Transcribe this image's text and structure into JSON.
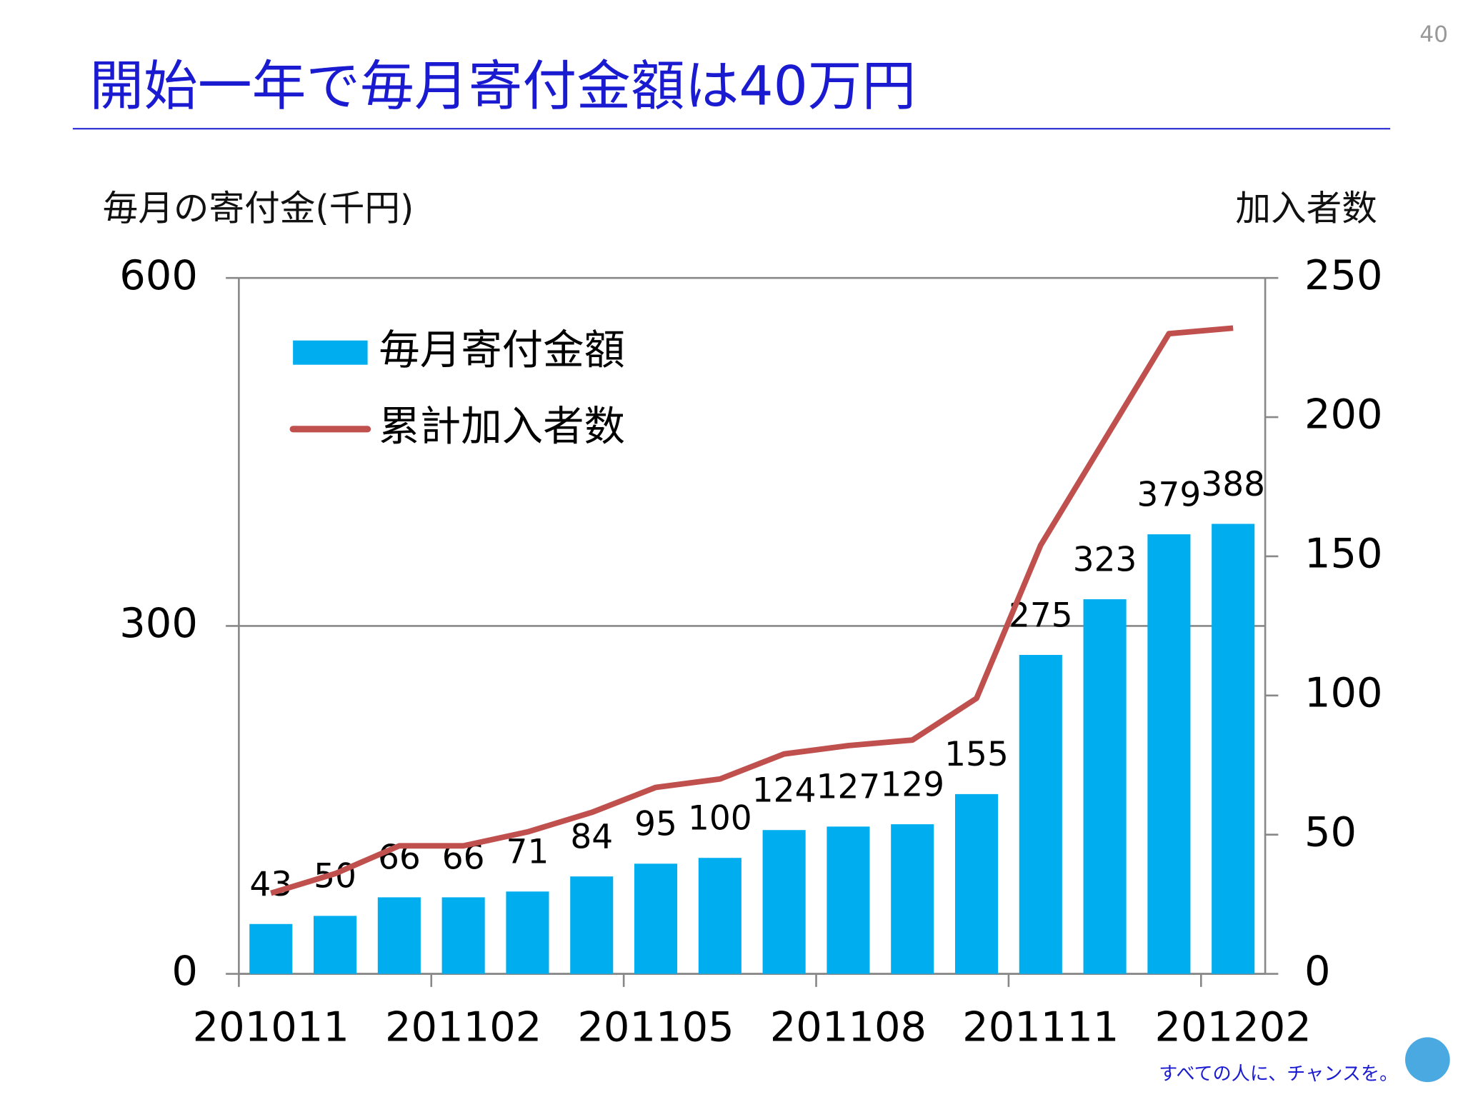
{
  "page_number": "40",
  "footer": "すべての人に、チャンスを。",
  "chart_data": {
    "type": "bar_line",
    "title": "開始一年で毎月寄付金額は40万円",
    "y_label": "毎月の寄付金(千円)",
    "y2_label": "加入者数",
    "categories": [
      "201011",
      null,
      null,
      "201102",
      null,
      null,
      "201105",
      null,
      null,
      "201108",
      null,
      null,
      "201111",
      null,
      null,
      "201202"
    ],
    "series": [
      {
        "name": "毎月寄付金額",
        "type": "bar",
        "color": "#00aeef",
        "values": [
          43,
          50,
          66,
          66,
          71,
          84,
          95,
          100,
          124,
          127,
          129,
          155,
          275,
          323,
          379,
          388
        ]
      },
      {
        "name": "累計加入者数",
        "type": "line",
        "color": "#c0504d",
        "axis": "y2",
        "values": [
          29,
          36,
          46,
          46,
          51,
          58,
          67,
          70,
          79,
          82,
          84,
          99,
          154,
          192,
          230,
          232
        ]
      }
    ],
    "ylim": [
      0,
      600
    ],
    "yticks": [
      0,
      300,
      600
    ],
    "y2lim": [
      0,
      250
    ],
    "y2ticks": [
      0,
      50,
      100,
      150,
      200,
      250
    ],
    "grid": true,
    "legend": "upper left"
  }
}
